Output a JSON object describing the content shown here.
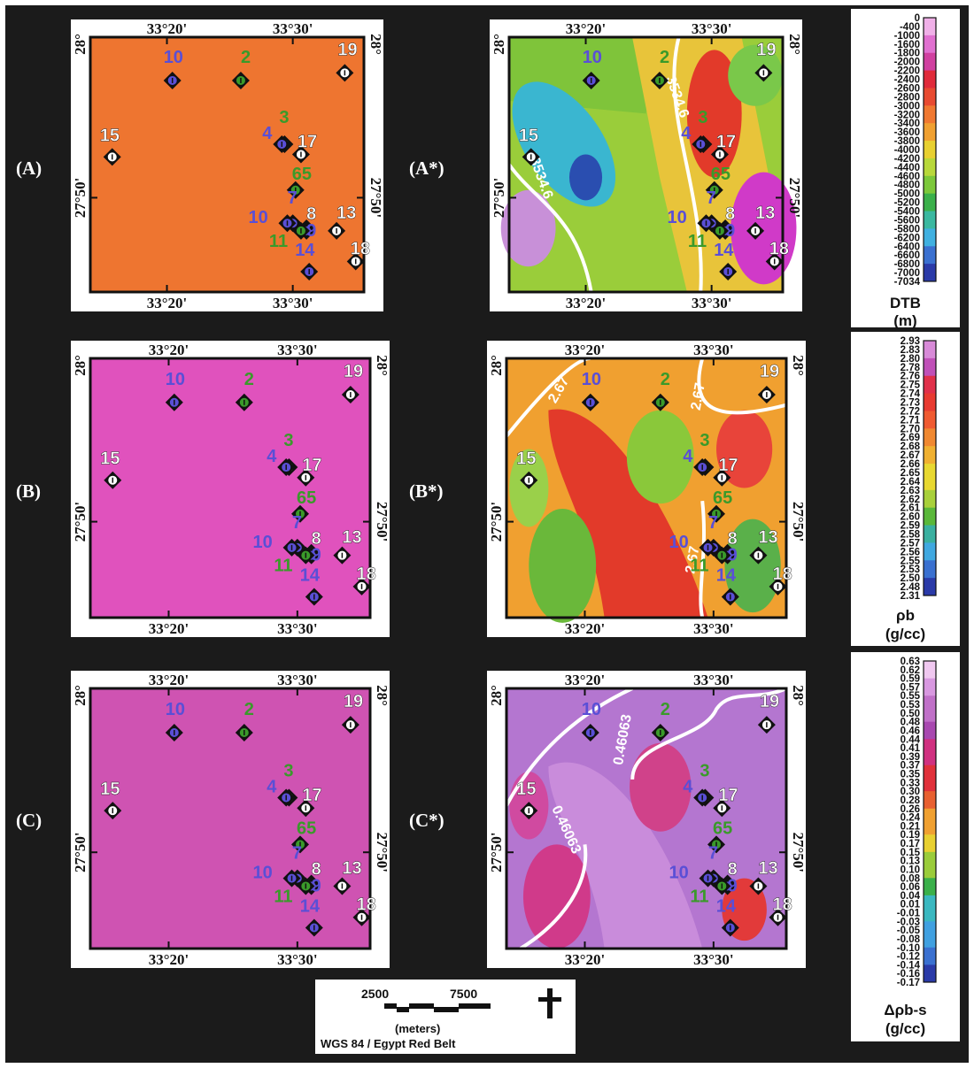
{
  "figure": {
    "panel_labels": [
      "(A)",
      "(A*)",
      "(B)",
      "(B*)",
      "(C)",
      "(C*)"
    ],
    "coordinates": {
      "top_left_lon": "33°20'",
      "top_right_lon": "33°30'",
      "bottom_left_lon": "33°20'",
      "bottom_right_lon": "33°30'",
      "top_lat": "28°",
      "mid_lat": "27°50'"
    },
    "wells": [
      {
        "label": "10",
        "color": "#5a4fd6",
        "kind": "blue"
      },
      {
        "label": "2",
        "color": "#3a9a2a",
        "kind": "green"
      },
      {
        "label": "19",
        "color": "#ffffff",
        "kind": "white"
      },
      {
        "label": "15",
        "color": "#ffffff",
        "kind": "white"
      },
      {
        "label": "3",
        "color": "#3a9a2a",
        "kind": "green"
      },
      {
        "label": "4",
        "color": "#5a4fd6",
        "kind": "blue"
      },
      {
        "label": "17",
        "color": "#ffffff",
        "kind": "white"
      },
      {
        "label": "65",
        "color": "#3a9a2a",
        "kind": "green"
      },
      {
        "label": "7",
        "color": "#5a4fd6",
        "kind": "blue"
      },
      {
        "label": "10",
        "color": "#5a4fd6",
        "kind": "blue"
      },
      {
        "label": "8",
        "color": "#ffffff",
        "kind": "white"
      },
      {
        "label": "13",
        "color": "#ffffff",
        "kind": "white"
      },
      {
        "label": "9",
        "color": "#5a4fd6",
        "kind": "blue"
      },
      {
        "label": "11",
        "color": "#3a9a2a",
        "kind": "green"
      },
      {
        "label": "18",
        "color": "#ffffff",
        "kind": "white"
      },
      {
        "label": "14",
        "color": "#5a4fd6",
        "kind": "blue"
      }
    ],
    "maps": {
      "A": {
        "fill": "#ee7530"
      },
      "B": {
        "fill": "#e052bd"
      },
      "C": {
        "fill": "#cf53b2"
      }
    },
    "contour_labels": {
      "A_star": [
        "3534.6",
        "-3534.6"
      ],
      "B_star": [
        "2.67",
        "2.67",
        "2.67"
      ],
      "C_star": [
        "0.46063",
        "0.46063"
      ]
    }
  },
  "legends": {
    "dtb": {
      "title_line1": "DTB",
      "title_line2": "(m)",
      "ticks": [
        "0",
        "-400",
        "-1000",
        "-1600",
        "-1800",
        "-2000",
        "-2200",
        "-2400",
        "-2600",
        "-2800",
        "-3000",
        "-3200",
        "-3400",
        "-3600",
        "-3800",
        "-4000",
        "-4200",
        "-4400",
        "-4600",
        "-4800",
        "-5000",
        "-5200",
        "-5400",
        "-5600",
        "-5800",
        "-6200",
        "-6400",
        "-6600",
        "-6800",
        "-7000",
        "-7034"
      ]
    },
    "rho": {
      "title_line1": "ρb",
      "title_line2": "(g/cc)",
      "ticks": [
        "2.93",
        "2.83",
        "2.80",
        "2.78",
        "2.76",
        "2.75",
        "2.74",
        "2.73",
        "2.72",
        "2.71",
        "2.70",
        "2.69",
        "2.68",
        "2.67",
        "2.66",
        "2.65",
        "2.64",
        "2.63",
        "2.62",
        "2.61",
        "2.60",
        "2.59",
        "2.58",
        "2.57",
        "2.56",
        "2.55",
        "2.53",
        "2.50",
        "2.48",
        "2.31"
      ]
    },
    "drho": {
      "title_line1": "Δρb-s",
      "title_line2": "(g/cc)",
      "ticks": [
        "0.63",
        "0.62",
        "0.59",
        "0.57",
        "0.55",
        "0.53",
        "0.50",
        "0.48",
        "0.46",
        "0.44",
        "0.41",
        "0.39",
        "0.37",
        "0.35",
        "0.33",
        "0.30",
        "0.28",
        "0.26",
        "0.24",
        "0.21",
        "0.19",
        "0.17",
        "0.15",
        "0.13",
        "0.10",
        "0.08",
        "0.06",
        "0.04",
        "0.01",
        "-0.01",
        "-0.03",
        "-0.05",
        "-0.08",
        "-0.10",
        "-0.12",
        "-0.14",
        "-0.16",
        "-0.17"
      ]
    }
  },
  "scale": {
    "left_value": "2500",
    "right_value": "7500",
    "unit": "(meters)",
    "datum": "WGS 84 / Egypt Red Belt"
  }
}
